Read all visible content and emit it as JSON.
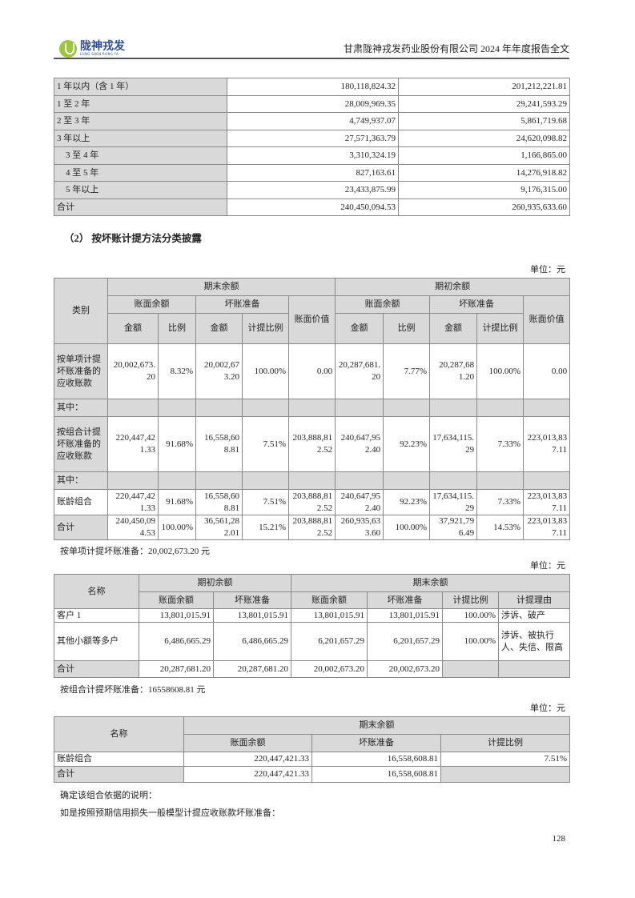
{
  "header": {
    "logo_cn": "陇神戎发",
    "logo_en": "LONG SHEN RONG FA",
    "title": "甘肃陇神戎发药业股份有限公司 2024 年年度报告全文"
  },
  "aging_table": {
    "rows": [
      [
        "1 年以内（含 1 年）",
        "180,118,824.32",
        "201,212,221.81"
      ],
      [
        "1 至 2 年",
        "28,009,969.35",
        "29,241,593.29"
      ],
      [
        "2 至 3 年",
        "4,749,937.07",
        "5,861,719.68"
      ],
      [
        "3 年以上",
        "27,571,363.79",
        "24,620,098.82"
      ],
      [
        "　3 至 4 年",
        "3,310,324.19",
        "1,166,865.00"
      ],
      [
        "　4 至 5 年",
        "827,163.61",
        "14,276,918.82"
      ],
      [
        "　5 年以上",
        "23,433,875.99",
        "9,176,315.00"
      ],
      [
        "合计",
        "240,450,094.53",
        "260,935,633.60"
      ]
    ]
  },
  "section_title": "（2）  按坏账计提方法分类披露",
  "unit_label": "单位：元",
  "method_table": {
    "headers": {
      "category": "类别",
      "closing": "期末余额",
      "opening": "期初余额",
      "book_balance": "账面余额",
      "bad_debt": "坏账准备",
      "book_value": "账面价值",
      "amount": "金额",
      "ratio": "比例",
      "provision_ratio": "计提比例"
    },
    "rows": [
      [
        "按单项计提坏账准备的应收账款",
        "20,002,673.20",
        "8.32%",
        "20,002,673.20",
        "100.00%",
        "0.00",
        "20,287,681.20",
        "7.77%",
        "20,287,681.20",
        "100.00%",
        "0.00"
      ],
      [
        "其中：",
        "",
        "",
        "",
        "",
        "",
        "",
        "",
        "",
        "",
        ""
      ],
      [
        "按组合计提坏账准备的应收账款",
        "220,447,421.33",
        "91.68%",
        "16,558,608.81",
        "7.51%",
        "203,888,812.52",
        "240,647,952.40",
        "92.23%",
        "17,634,115.29",
        "7.33%",
        "223,013,837.11"
      ],
      [
        "其中：",
        "",
        "",
        "",
        "",
        "",
        "",
        "",
        "",
        "",
        ""
      ],
      [
        "账龄组合",
        "220,447,421.33",
        "91.68%",
        "16,558,608.81",
        "7.51%",
        "203,888,812.52",
        "240,647,952.40",
        "92.23%",
        "17,634,115.29",
        "7.33%",
        "223,013,837.11"
      ],
      [
        "合计",
        "240,450,094.53",
        "100.00%",
        "36,561,282.01",
        "15.21%",
        "203,888,812.52",
        "260,935,633.60",
        "100.00%",
        "37,921,796.49",
        "14.53%",
        "223,013,837.11"
      ]
    ]
  },
  "single_note": "按单项计提坏账准备：20,002,673.20 元",
  "single_table": {
    "headers": {
      "name": "名称",
      "opening": "期初余额",
      "closing": "期末余额",
      "book_balance": "账面余额",
      "bad_debt": "坏账准备",
      "provision_ratio": "计提比例",
      "reason": "计提理由"
    },
    "rows": [
      [
        "客户 1",
        "13,801,015.91",
        "13,801,015.91",
        "13,801,015.91",
        "13,801,015.91",
        "100.00%",
        "涉诉、破产"
      ],
      [
        "其他小额等多户",
        "6,486,665.29",
        "6,486,665.29",
        "6,201,657.29",
        "6,201,657.29",
        "100.00%",
        "涉诉、被执行人、失信、限高"
      ],
      [
        "合计",
        "20,287,681.20",
        "20,287,681.20",
        "20,002,673.20",
        "20,002,673.20",
        "",
        ""
      ]
    ]
  },
  "group_note": "按组合计提坏账准备：16558608.81 元",
  "group_table": {
    "headers": {
      "name": "名称",
      "closing": "期末余额",
      "book_balance": "账面余额",
      "bad_debt": "坏账准备",
      "provision_ratio": "计提比例"
    },
    "rows": [
      [
        "账龄组合",
        "220,447,421.33",
        "16,558,608.81",
        "7.51%"
      ],
      [
        "合计",
        "220,447,421.33",
        "16,558,608.81",
        ""
      ]
    ]
  },
  "basis_note": "确定该组合依据的说明：",
  "ecl_note": "如是按照预期信用损失一般模型计提应收账款坏账准备：",
  "page_number": "128"
}
